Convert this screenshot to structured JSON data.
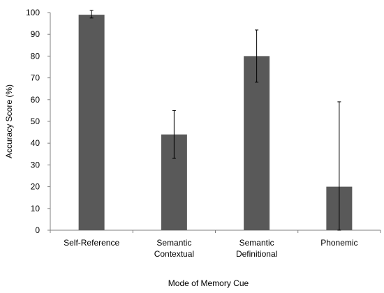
{
  "chart_data": {
    "type": "bar",
    "title": "",
    "xlabel": "Mode of Memory Cue",
    "ylabel": "Accuracy Score (%)",
    "ylim": [
      0,
      100
    ],
    "yticks": [
      0,
      10,
      20,
      30,
      40,
      50,
      60,
      70,
      80,
      90,
      100
    ],
    "categories": [
      [
        "Self-Reference"
      ],
      [
        "Semantic",
        "Contextual"
      ],
      [
        "Semantic",
        "Definitional"
      ],
      [
        "Phonemic"
      ]
    ],
    "values": [
      99,
      44,
      80,
      20
    ],
    "error_low": [
      97.5,
      33,
      68,
      0
    ],
    "error_high": [
      101,
      55,
      92,
      59
    ],
    "bar_color": "#595959",
    "grid": false,
    "legend": false
  }
}
